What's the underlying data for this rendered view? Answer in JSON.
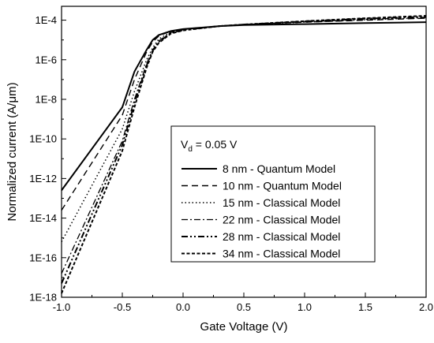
{
  "chart_data": {
    "type": "line",
    "xlabel": "Gate Voltage (V)",
    "ylabel": "Normalized current (A/μm)",
    "xlim": [
      -1.0,
      2.0
    ],
    "ylim_log10": [
      -18,
      -3.3
    ],
    "y_scale": "log",
    "x_ticks": [
      "-1.0",
      "-0.5",
      "0.0",
      "0.5",
      "1.0",
      "1.5",
      "2.0"
    ],
    "y_ticks": [
      "1E-18",
      "1E-16",
      "1E-14",
      "1E-12",
      "1E-10",
      "1E-8",
      "1E-6",
      "1E-4"
    ],
    "annotation": {
      "base": "V",
      "sub": "d",
      "rest": " = 0.05 V"
    },
    "legend_position": "center-right",
    "grid": false,
    "series": [
      {
        "name": "8 nm - Quantum Model",
        "dash": "solid",
        "points": [
          [
            -1.0,
            -12.6
          ],
          [
            -0.5,
            -8.4
          ],
          [
            -0.4,
            -6.6
          ],
          [
            -0.3,
            -5.5
          ],
          [
            -0.25,
            -5.0
          ],
          [
            -0.2,
            -4.75
          ],
          [
            -0.1,
            -4.55
          ],
          [
            0.0,
            -4.45
          ],
          [
            0.3,
            -4.3
          ],
          [
            0.5,
            -4.25
          ],
          [
            1.0,
            -4.2
          ],
          [
            1.5,
            -4.15
          ],
          [
            2.0,
            -4.1
          ]
        ]
      },
      {
        "name": "10 nm - Quantum Model",
        "dash": "dashed",
        "points": [
          [
            -1.0,
            -13.6
          ],
          [
            -0.5,
            -8.8
          ],
          [
            -0.4,
            -7.0
          ],
          [
            -0.3,
            -5.6
          ],
          [
            -0.25,
            -5.1
          ],
          [
            -0.2,
            -4.8
          ],
          [
            -0.1,
            -4.55
          ],
          [
            0.0,
            -4.45
          ],
          [
            0.3,
            -4.3
          ],
          [
            0.5,
            -4.22
          ],
          [
            1.0,
            -4.1
          ],
          [
            1.5,
            -4.0
          ],
          [
            2.0,
            -3.9
          ]
        ]
      },
      {
        "name": "15 nm - Classical Model",
        "dash": "dotted",
        "points": [
          [
            -1.0,
            -15.2
          ],
          [
            -0.5,
            -9.5
          ],
          [
            -0.4,
            -7.6
          ],
          [
            -0.3,
            -6.0
          ],
          [
            -0.25,
            -5.4
          ],
          [
            -0.2,
            -4.95
          ],
          [
            -0.1,
            -4.6
          ],
          [
            0.0,
            -4.47
          ],
          [
            0.3,
            -4.3
          ],
          [
            0.5,
            -4.22
          ],
          [
            1.0,
            -4.1
          ],
          [
            1.5,
            -3.98
          ],
          [
            2.0,
            -3.88
          ]
        ]
      },
      {
        "name": "22 nm - Classical Model",
        "dash": "dashdot",
        "points": [
          [
            -1.0,
            -16.8
          ],
          [
            -0.5,
            -10.1
          ],
          [
            -0.4,
            -8.0
          ],
          [
            -0.3,
            -6.2
          ],
          [
            -0.25,
            -5.5
          ],
          [
            -0.2,
            -5.05
          ],
          [
            -0.1,
            -4.62
          ],
          [
            0.0,
            -4.48
          ],
          [
            0.3,
            -4.3
          ],
          [
            0.5,
            -4.22
          ],
          [
            1.0,
            -4.08
          ],
          [
            1.5,
            -3.96
          ],
          [
            2.0,
            -3.85
          ]
        ]
      },
      {
        "name": "28 nm - Classical Model",
        "dash": "dashdotdot",
        "points": [
          [
            -1.0,
            -17.3
          ],
          [
            -0.5,
            -10.3
          ],
          [
            -0.4,
            -8.2
          ],
          [
            -0.3,
            -6.3
          ],
          [
            -0.25,
            -5.55
          ],
          [
            -0.2,
            -5.1
          ],
          [
            -0.1,
            -4.65
          ],
          [
            0.0,
            -4.5
          ],
          [
            0.3,
            -4.3
          ],
          [
            0.5,
            -4.22
          ],
          [
            1.0,
            -4.06
          ],
          [
            1.5,
            -3.92
          ],
          [
            2.0,
            -3.82
          ]
        ]
      },
      {
        "name": "34 nm - Classical Model",
        "dash": "shortdash",
        "points": [
          [
            -1.0,
            -17.8
          ],
          [
            -0.5,
            -10.6
          ],
          [
            -0.4,
            -8.4
          ],
          [
            -0.3,
            -6.4
          ],
          [
            -0.25,
            -5.6
          ],
          [
            -0.2,
            -5.15
          ],
          [
            -0.1,
            -4.68
          ],
          [
            0.0,
            -4.52
          ],
          [
            0.3,
            -4.3
          ],
          [
            0.5,
            -4.22
          ],
          [
            1.0,
            -4.05
          ],
          [
            1.5,
            -3.9
          ],
          [
            2.0,
            -3.78
          ]
        ]
      }
    ]
  }
}
